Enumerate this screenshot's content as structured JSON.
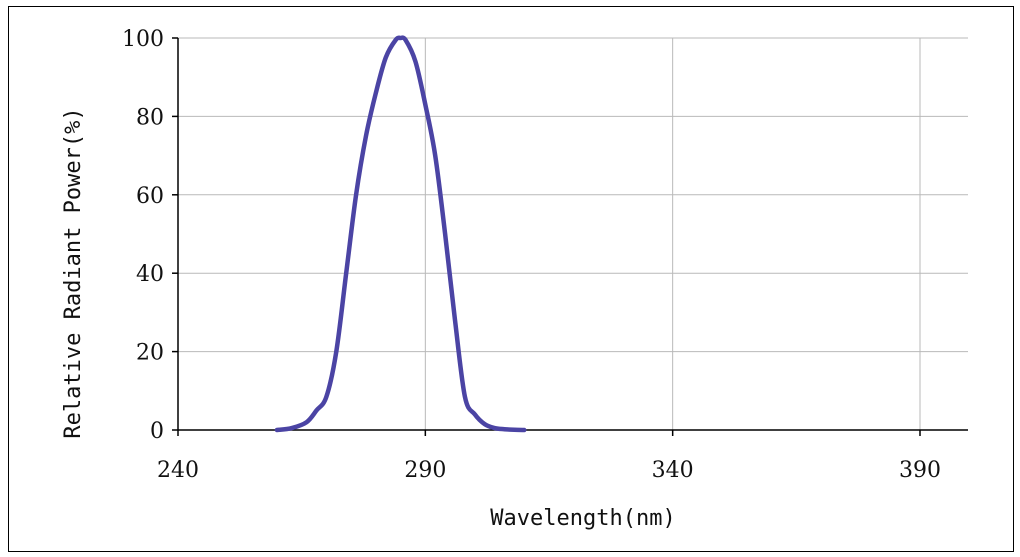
{
  "chart_data": {
    "type": "line",
    "title": "",
    "xlabel": "Wavelength(nm)",
    "ylabel": "Relative Radiant Power(%)",
    "xlim": [
      240,
      400
    ],
    "ylim": [
      0,
      100
    ],
    "x_ticks": [
      240,
      290,
      340,
      390
    ],
    "y_ticks": [
      0,
      20,
      40,
      60,
      80,
      100
    ],
    "grid": true,
    "legend": "none",
    "series": [
      {
        "color": "#4b44a4",
        "x": [
          260,
          263,
          266,
          268,
          270,
          272,
          274,
          276,
          278,
          280,
          282,
          284,
          285,
          286,
          288,
          290,
          292,
          294,
          296,
          298,
          300,
          302,
          304,
          306,
          308,
          310
        ],
        "y": [
          0,
          0.5,
          2,
          5,
          8.5,
          20,
          40,
          60,
          75,
          86,
          95,
          99.5,
          100,
          99.5,
          94,
          83,
          70,
          50,
          28,
          8.5,
          4,
          1.5,
          0.5,
          0.2,
          0.05,
          0
        ]
      }
    ]
  }
}
